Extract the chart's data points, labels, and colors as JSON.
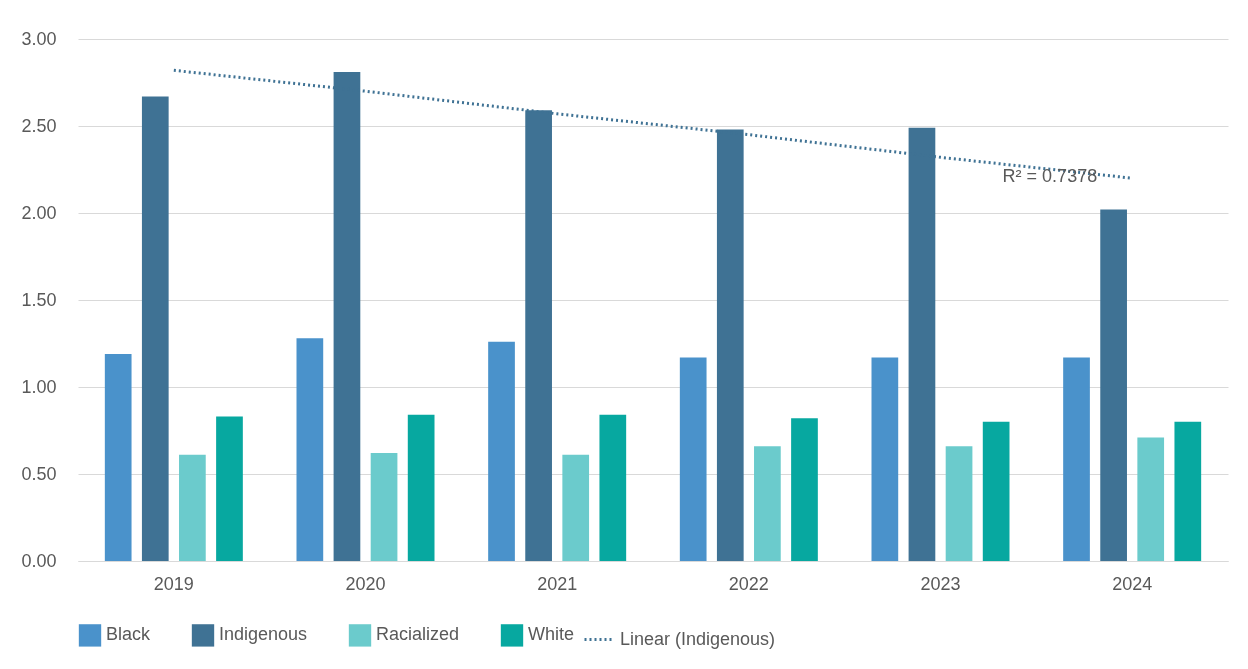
{
  "chart_data": {
    "type": "bar",
    "categories": [
      "2019",
      "2020",
      "2021",
      "2022",
      "2023",
      "2024"
    ],
    "series": [
      {
        "name": "Black",
        "color": "#4a92cb",
        "values": [
          1.19,
          1.28,
          1.26,
          1.17,
          1.17,
          1.17
        ]
      },
      {
        "name": "Indigenous",
        "color": "#3f7294",
        "values": [
          2.67,
          2.81,
          2.59,
          2.48,
          2.49,
          2.02
        ]
      },
      {
        "name": "Racialized",
        "color": "#6bcbcc",
        "values": [
          0.61,
          0.62,
          0.61,
          0.66,
          0.66,
          0.71
        ]
      },
      {
        "name": "White",
        "color": "#07a8a0",
        "values": [
          0.83,
          0.84,
          0.84,
          0.82,
          0.8,
          0.8
        ]
      },
      {
        "name": "Linear (Indigenous)",
        "type": "line",
        "line_style": "dotted",
        "color": "#3f7294",
        "values": [
          2.82,
          2.7,
          2.57,
          2.45,
          2.32,
          2.2
        ]
      }
    ],
    "annotations": [
      "R² = 0.7378"
    ],
    "ylim": [
      0,
      3
    ],
    "yticks": [
      {
        "value": 0,
        "label": "0.00"
      },
      {
        "value": 0.5,
        "label": "0.50"
      },
      {
        "value": 1,
        "label": "1.00"
      },
      {
        "value": 1.5,
        "label": "1.50"
      },
      {
        "value": 2,
        "label": "2.00"
      },
      {
        "value": 2.5,
        "label": "2.50"
      },
      {
        "value": 3,
        "label": "3.00"
      }
    ],
    "grid": "y",
    "legend": "bottom"
  }
}
